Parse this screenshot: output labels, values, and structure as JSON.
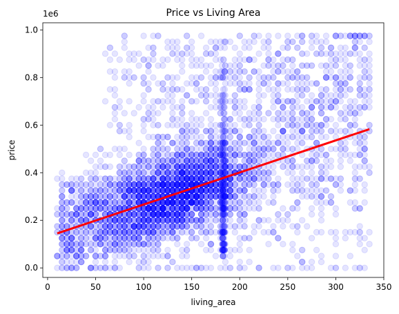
{
  "chart_data": {
    "type": "scatter",
    "title": "Price vs Living Area",
    "xlabel": "living_area",
    "ylabel": "price",
    "y_offset_label": "1e6",
    "xlim": [
      -5,
      350
    ],
    "ylim": [
      -0.04,
      1.03
    ],
    "x_ticks": [
      {
        "value": 0,
        "label": "0"
      },
      {
        "value": 50,
        "label": "50"
      },
      {
        "value": 100,
        "label": "100"
      },
      {
        "value": 150,
        "label": "150"
      },
      {
        "value": 200,
        "label": "200"
      },
      {
        "value": 250,
        "label": "250"
      },
      {
        "value": 300,
        "label": "300"
      },
      {
        "value": 350,
        "label": "350"
      }
    ],
    "y_ticks": [
      {
        "value": 0.0,
        "label": "0.0"
      },
      {
        "value": 0.2,
        "label": "0.2"
      },
      {
        "value": 0.4,
        "label": "0.4"
      },
      {
        "value": 0.6,
        "label": "0.6"
      },
      {
        "value": 0.8,
        "label": "0.8"
      },
      {
        "value": 1.0,
        "label": "1.0"
      }
    ],
    "grid": false,
    "legend": "none",
    "point_color": "#0000ff",
    "point_opacity": 0.1,
    "line_color": "#ff0000",
    "scatter": {
      "x_range": [
        10,
        335
      ],
      "y_range": [
        0.01,
        0.985
      ],
      "dense_cluster_x": [
        70,
        200
      ],
      "dense_cluster_y": [
        0.15,
        0.45
      ],
      "vertical_streak_x": 183
    },
    "regression_line": {
      "x": [
        10,
        335
      ],
      "y": [
        0.145,
        0.583
      ]
    }
  }
}
